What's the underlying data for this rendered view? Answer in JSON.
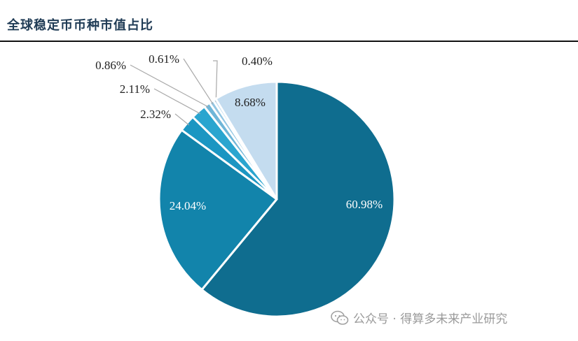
{
  "header": {
    "title": "全球稳定币币种市值占比"
  },
  "watermark": {
    "text": "公众号 · 得算多未来产业研究"
  },
  "chart_data": {
    "type": "pie",
    "title": "全球稳定币币种市值占比",
    "slices": [
      {
        "label": "60.98%",
        "value": 60.98,
        "color": "#0f6d8f",
        "label_color": "#ffffff"
      },
      {
        "label": "24.04%",
        "value": 24.04,
        "color": "#1284ab",
        "label_color": "#ffffff"
      },
      {
        "label": "2.32%",
        "value": 2.32,
        "color": "#1b96c2"
      },
      {
        "label": "2.11%",
        "value": 2.11,
        "color": "#2aa5cf"
      },
      {
        "label": "0.86%",
        "value": 0.86,
        "color": "#6fb6d8"
      },
      {
        "label": "0.61%",
        "value": 0.61,
        "color": "#93c6e2"
      },
      {
        "label": "0.40%",
        "value": 0.4,
        "color": "#b4d6ec"
      },
      {
        "label": "8.68%",
        "value": 8.68,
        "color": "#c4dcef",
        "label_color": "#222222"
      }
    ]
  }
}
